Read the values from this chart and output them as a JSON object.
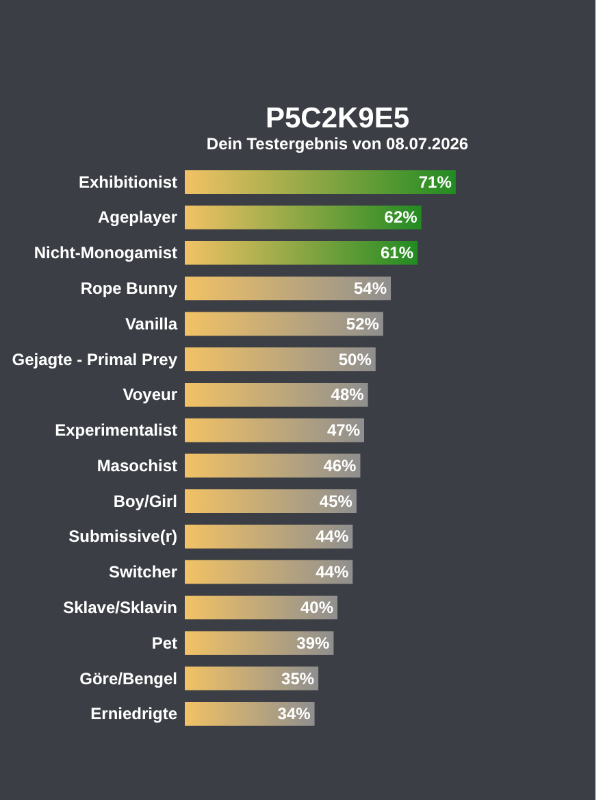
{
  "chart_data": {
    "type": "bar",
    "orientation": "horizontal",
    "title": "P5C2K9E5",
    "subtitle": "Dein Testergebnis von 08.07.2026",
    "categories": [
      "Exhibitionist",
      "Ageplayer",
      "Nicht-Monogamist",
      "Rope Bunny",
      "Vanilla",
      "Gejagte - Primal Prey",
      "Voyeur",
      "Experimentalist",
      "Masochist",
      "Boy/Girl",
      "Submissive(r)",
      "Switcher",
      "Sklave/Sklavin",
      "Pet",
      "Göre/Bengel",
      "Erniedrigte"
    ],
    "values": [
      71,
      62,
      61,
      54,
      52,
      50,
      48,
      47,
      46,
      45,
      44,
      44,
      40,
      39,
      35,
      34
    ],
    "colors": [
      "#228b22",
      "#228b22",
      "#228b22",
      "#8f8f8f",
      "#8f8f8f",
      "#8f8f8f",
      "#8f8f8f",
      "#8f8f8f",
      "#8f8f8f",
      "#8f8f8f",
      "#8f8f8f",
      "#8f8f8f",
      "#8f8f8f",
      "#8f8f8f",
      "#8f8f8f",
      "#8f8f8f"
    ],
    "value_labels": [
      "71%",
      "62%",
      "61%",
      "54%",
      "52%",
      "50%",
      "48%",
      "47%",
      "46%",
      "45%",
      "44%",
      "44%",
      "40%",
      "39%",
      "35%",
      "34%"
    ],
    "tick_labels": "y"
  }
}
